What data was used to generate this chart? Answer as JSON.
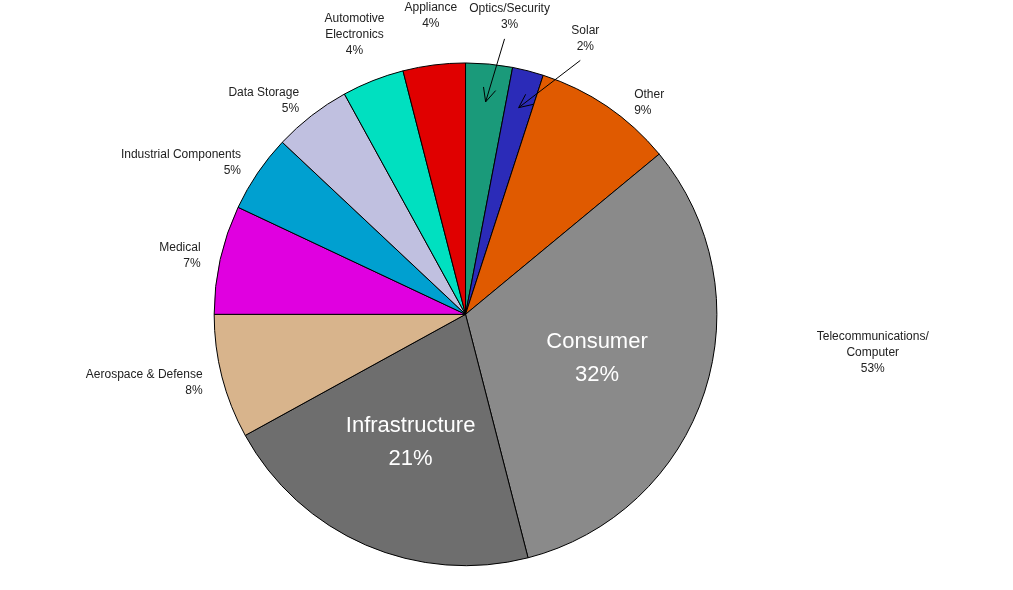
{
  "chart_data": {
    "type": "pie",
    "categories": [
      "Optics/Security",
      "Solar",
      "Other",
      "Consumer",
      "Infrastructure",
      "Aerospace & Defense",
      "Medical",
      "Industrial Components",
      "Data Storage",
      "Automotive\nElectronics",
      "Appliance"
    ],
    "values": [
      3,
      2,
      9,
      32,
      21,
      8,
      7,
      5,
      5,
      4,
      4
    ],
    "value_labels": [
      "3%",
      "2%",
      "9%",
      "32%",
      "21%",
      "8%",
      "7%",
      "5%",
      "5%",
      "4%",
      "4%"
    ],
    "colors": [
      "#1a9a7a",
      "#2b2bb8",
      "#e05a00",
      "#8a8a8a",
      "#6e6e6e",
      "#d8b48c",
      "#e000e0",
      "#00a0d0",
      "#c0c0e0",
      "#00e0c0",
      "#e00000"
    ],
    "annotations": [
      "Telecommunications/\nComputer\n53%"
    ]
  }
}
